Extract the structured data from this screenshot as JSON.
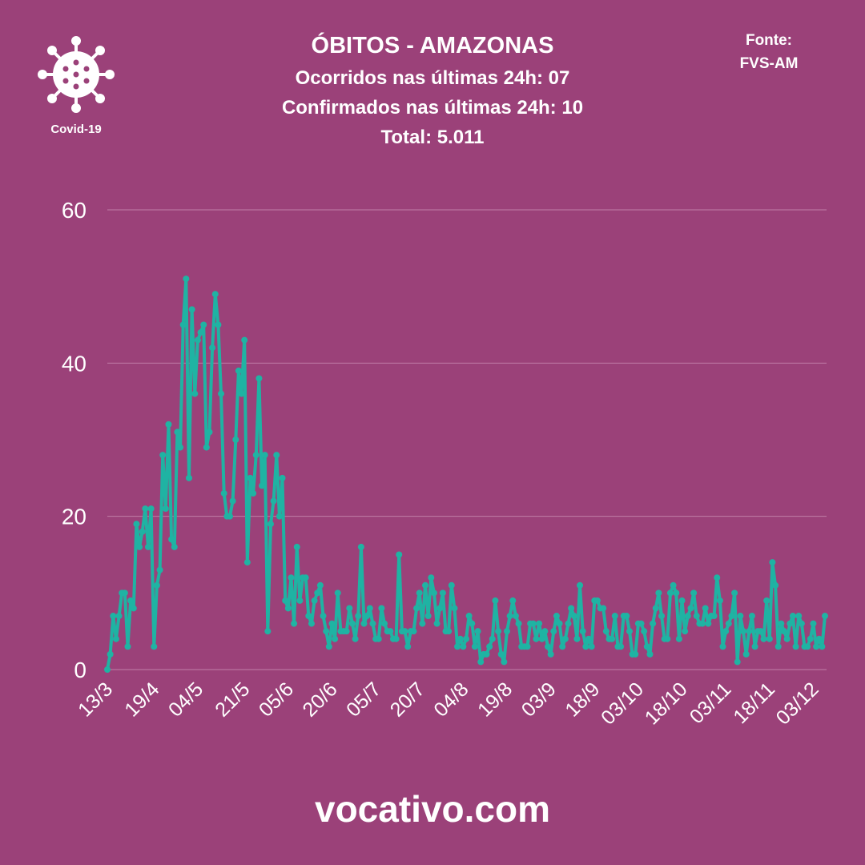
{
  "chart_data": {
    "type": "line",
    "title": "ÓBITOS - AMAZONAS",
    "subtitles": [
      "Ocorridos nas últimas 24h: 07",
      "Confirmados nas últimas 24h: 10",
      "Total: 5.011"
    ],
    "source_label": "Fonte:",
    "source": "FVS-AM",
    "logo_label": "Covid-19",
    "footer": "vocativo.com",
    "color": "#1fb3a3",
    "grid": true,
    "ylim": [
      0,
      60
    ],
    "yticks": [
      0,
      20,
      40,
      60
    ],
    "categories": [
      "13/3",
      null,
      null,
      null,
      null,
      null,
      null,
      null,
      null,
      null,
      null,
      null,
      null,
      null,
      null,
      null,
      "19/4",
      null,
      null,
      null,
      null,
      null,
      null,
      null,
      null,
      null,
      null,
      null,
      null,
      null,
      null,
      "04/5",
      null,
      null,
      null,
      null,
      null,
      null,
      null,
      null,
      null,
      null,
      null,
      null,
      null,
      null,
      null,
      "21/5",
      null,
      null,
      null,
      null,
      null,
      null,
      null,
      null,
      null,
      null,
      null,
      null,
      null,
      null,
      "05/6",
      null,
      null,
      null,
      null,
      null,
      null,
      null,
      null,
      null,
      null,
      null,
      null,
      null,
      null,
      "20/6",
      null,
      null,
      null,
      null,
      null,
      null,
      null,
      null,
      null,
      null,
      null,
      null,
      null,
      null,
      "05/7",
      null,
      null,
      null,
      null,
      null,
      null,
      null,
      null,
      null,
      null,
      null,
      null,
      null,
      null,
      "20/7",
      null,
      null,
      null,
      null,
      null,
      null,
      null,
      null,
      null,
      null,
      null,
      null,
      null,
      null,
      "04/8",
      null,
      null,
      null,
      null,
      null,
      null,
      null,
      null,
      null,
      null,
      null,
      null,
      null,
      null,
      "19/8",
      null,
      null,
      null,
      null,
      null,
      null,
      null,
      null,
      null,
      null,
      null,
      null,
      null,
      null,
      "03/9",
      null,
      null,
      null,
      null,
      null,
      null,
      null,
      null,
      null,
      null,
      null,
      null,
      null,
      null,
      "18/9",
      null,
      null,
      null,
      null,
      null,
      null,
      null,
      null,
      null,
      null,
      null,
      null,
      null,
      null,
      "03/10",
      null,
      null,
      null,
      null,
      null,
      null,
      null,
      null,
      null,
      null,
      null,
      null,
      null,
      null,
      "18/10",
      null,
      null,
      null,
      null,
      null,
      null,
      null,
      null,
      null,
      null,
      null,
      null,
      null,
      null,
      "03/11",
      null,
      null,
      null,
      null,
      null,
      null,
      null,
      null,
      null,
      null,
      null,
      null,
      null,
      null,
      "18/11",
      null,
      null,
      null,
      null,
      null,
      null,
      null,
      null,
      null,
      null,
      null,
      null,
      null,
      null,
      "03/12",
      null,
      null,
      null,
      null
    ],
    "values": [
      0,
      2,
      7,
      4,
      7,
      10,
      10,
      3,
      9,
      8,
      19,
      16,
      18,
      21,
      16,
      21,
      3,
      11,
      13,
      28,
      21,
      32,
      17,
      16,
      31,
      29,
      45,
      51,
      25,
      47,
      36,
      43,
      44,
      45,
      29,
      31,
      42,
      49,
      45,
      36,
      23,
      20,
      20,
      22,
      30,
      39,
      36,
      43,
      14,
      25,
      23,
      28,
      38,
      24,
      28,
      5,
      19,
      22,
      28,
      20,
      25,
      9,
      8,
      12,
      6,
      16,
      9,
      12,
      12,
      7,
      6,
      9,
      10,
      11,
      7,
      5,
      3,
      6,
      4,
      10,
      5,
      5,
      5,
      8,
      6,
      4,
      7,
      16,
      6,
      7,
      8,
      6,
      4,
      4,
      8,
      6,
      5,
      5,
      4,
      4,
      15,
      5,
      5,
      3,
      5,
      5,
      8,
      10,
      6,
      11,
      7,
      12,
      10,
      6,
      8,
      10,
      5,
      5,
      11,
      8,
      3,
      4,
      3,
      4,
      7,
      6,
      3,
      5,
      1,
      2,
      2,
      3,
      4,
      9,
      5,
      2,
      1,
      5,
      7,
      9,
      7,
      6,
      3,
      3,
      3,
      6,
      6,
      4,
      6,
      4,
      5,
      3,
      2,
      5,
      7,
      6,
      3,
      4,
      6,
      8,
      7,
      4,
      11,
      5,
      3,
      4,
      3,
      9,
      9,
      8,
      8,
      5,
      4,
      4,
      7,
      3,
      3,
      7,
      7,
      5,
      2,
      2,
      6,
      6,
      5,
      3,
      2,
      6,
      8,
      10,
      7,
      4,
      4,
      10,
      11,
      10,
      4,
      9,
      5,
      7,
      8,
      10,
      7,
      6,
      6,
      8,
      6,
      7,
      7,
      12,
      9,
      3,
      5,
      6,
      7,
      10,
      1,
      7,
      5,
      2,
      5,
      7,
      3,
      5,
      5,
      4,
      9,
      4,
      14,
      11,
      3,
      6,
      5,
      4,
      6,
      7,
      3,
      7,
      6,
      3,
      3,
      4,
      6,
      3,
      4,
      3,
      7
    ]
  }
}
